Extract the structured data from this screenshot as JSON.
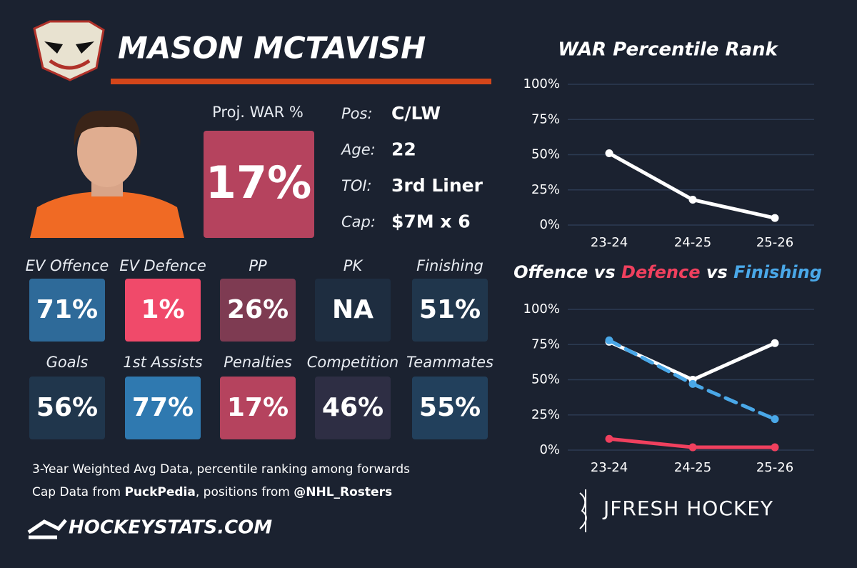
{
  "header": {
    "name": "MASON MCTAVISH"
  },
  "proj_war": {
    "label": "Proj. WAR %",
    "value": "17%",
    "color": "#b5435e"
  },
  "info": [
    {
      "label": "Pos:",
      "value": "C/LW"
    },
    {
      "label": "Age:",
      "value": "22"
    },
    {
      "label": "TOI:",
      "value": "3rd Liner"
    },
    {
      "label": "Cap:",
      "value": "$7M x 6"
    }
  ],
  "tiles": [
    {
      "label": "EV Offence",
      "value": "71%",
      "color": "#2e6a99"
    },
    {
      "label": "EV Defence",
      "value": "1%",
      "color": "#f04a6a"
    },
    {
      "label": "PP",
      "value": "26%",
      "color": "#7e3b52"
    },
    {
      "label": "PK",
      "value": "NA",
      "color": "#1e2d40"
    },
    {
      "label": "Finishing",
      "value": "51%",
      "color": "#20364c"
    },
    {
      "label": "Goals",
      "value": "56%",
      "color": "#20364c"
    },
    {
      "label": "1st Assists",
      "value": "77%",
      "color": "#2f79b0"
    },
    {
      "label": "Penalties",
      "value": "17%",
      "color": "#b5435e"
    },
    {
      "label": "Competition",
      "value": "46%",
      "color": "#2e2e44"
    },
    {
      "label": "Teammates",
      "value": "55%",
      "color": "#22405c"
    }
  ],
  "notes": {
    "line1": "3-Year Weighted Avg Data, percentile ranking among forwards",
    "line2": [
      "Cap Data from ",
      "PuckPedia",
      ", positions from ",
      "@NHL_Rosters"
    ]
  },
  "logos": {
    "left": "HOCKEYSTATS.COM",
    "right": "JFRESH HOCKEY"
  },
  "chart_data": [
    {
      "type": "line",
      "title": "WAR Percentile Rank",
      "categories": [
        "23-24",
        "24-25",
        "25-26"
      ],
      "values": [
        51,
        18,
        5
      ],
      "color": "#ffffff",
      "ylim": [
        0,
        100
      ],
      "yticks": [
        {
          "value": 0,
          "label": "0%"
        },
        {
          "value": 25,
          "label": "25%"
        },
        {
          "value": 50,
          "label": "50%"
        },
        {
          "value": 75,
          "label": "75%"
        },
        {
          "value": 100,
          "label": "100%"
        }
      ],
      "grid": true
    },
    {
      "type": "line",
      "title_joiner": "vs",
      "categories": [
        "23-24",
        "24-25",
        "25-26"
      ],
      "series": [
        {
          "name": "Offence",
          "color": "#ffffff",
          "values": [
            77,
            50,
            76
          ]
        },
        {
          "name": "Defence",
          "color": "#f0405e",
          "values": [
            8,
            2,
            2
          ]
        },
        {
          "name": "Finishing",
          "color": "#4aa8e8",
          "values": [
            78,
            47,
            22
          ],
          "dashed": true
        }
      ],
      "ylim": [
        0,
        100
      ],
      "yticks": [
        {
          "value": 0,
          "label": "0%"
        },
        {
          "value": 25,
          "label": "25%"
        },
        {
          "value": 50,
          "label": "50%"
        },
        {
          "value": 75,
          "label": "75%"
        },
        {
          "value": 100,
          "label": "100%"
        }
      ],
      "grid": true
    }
  ]
}
